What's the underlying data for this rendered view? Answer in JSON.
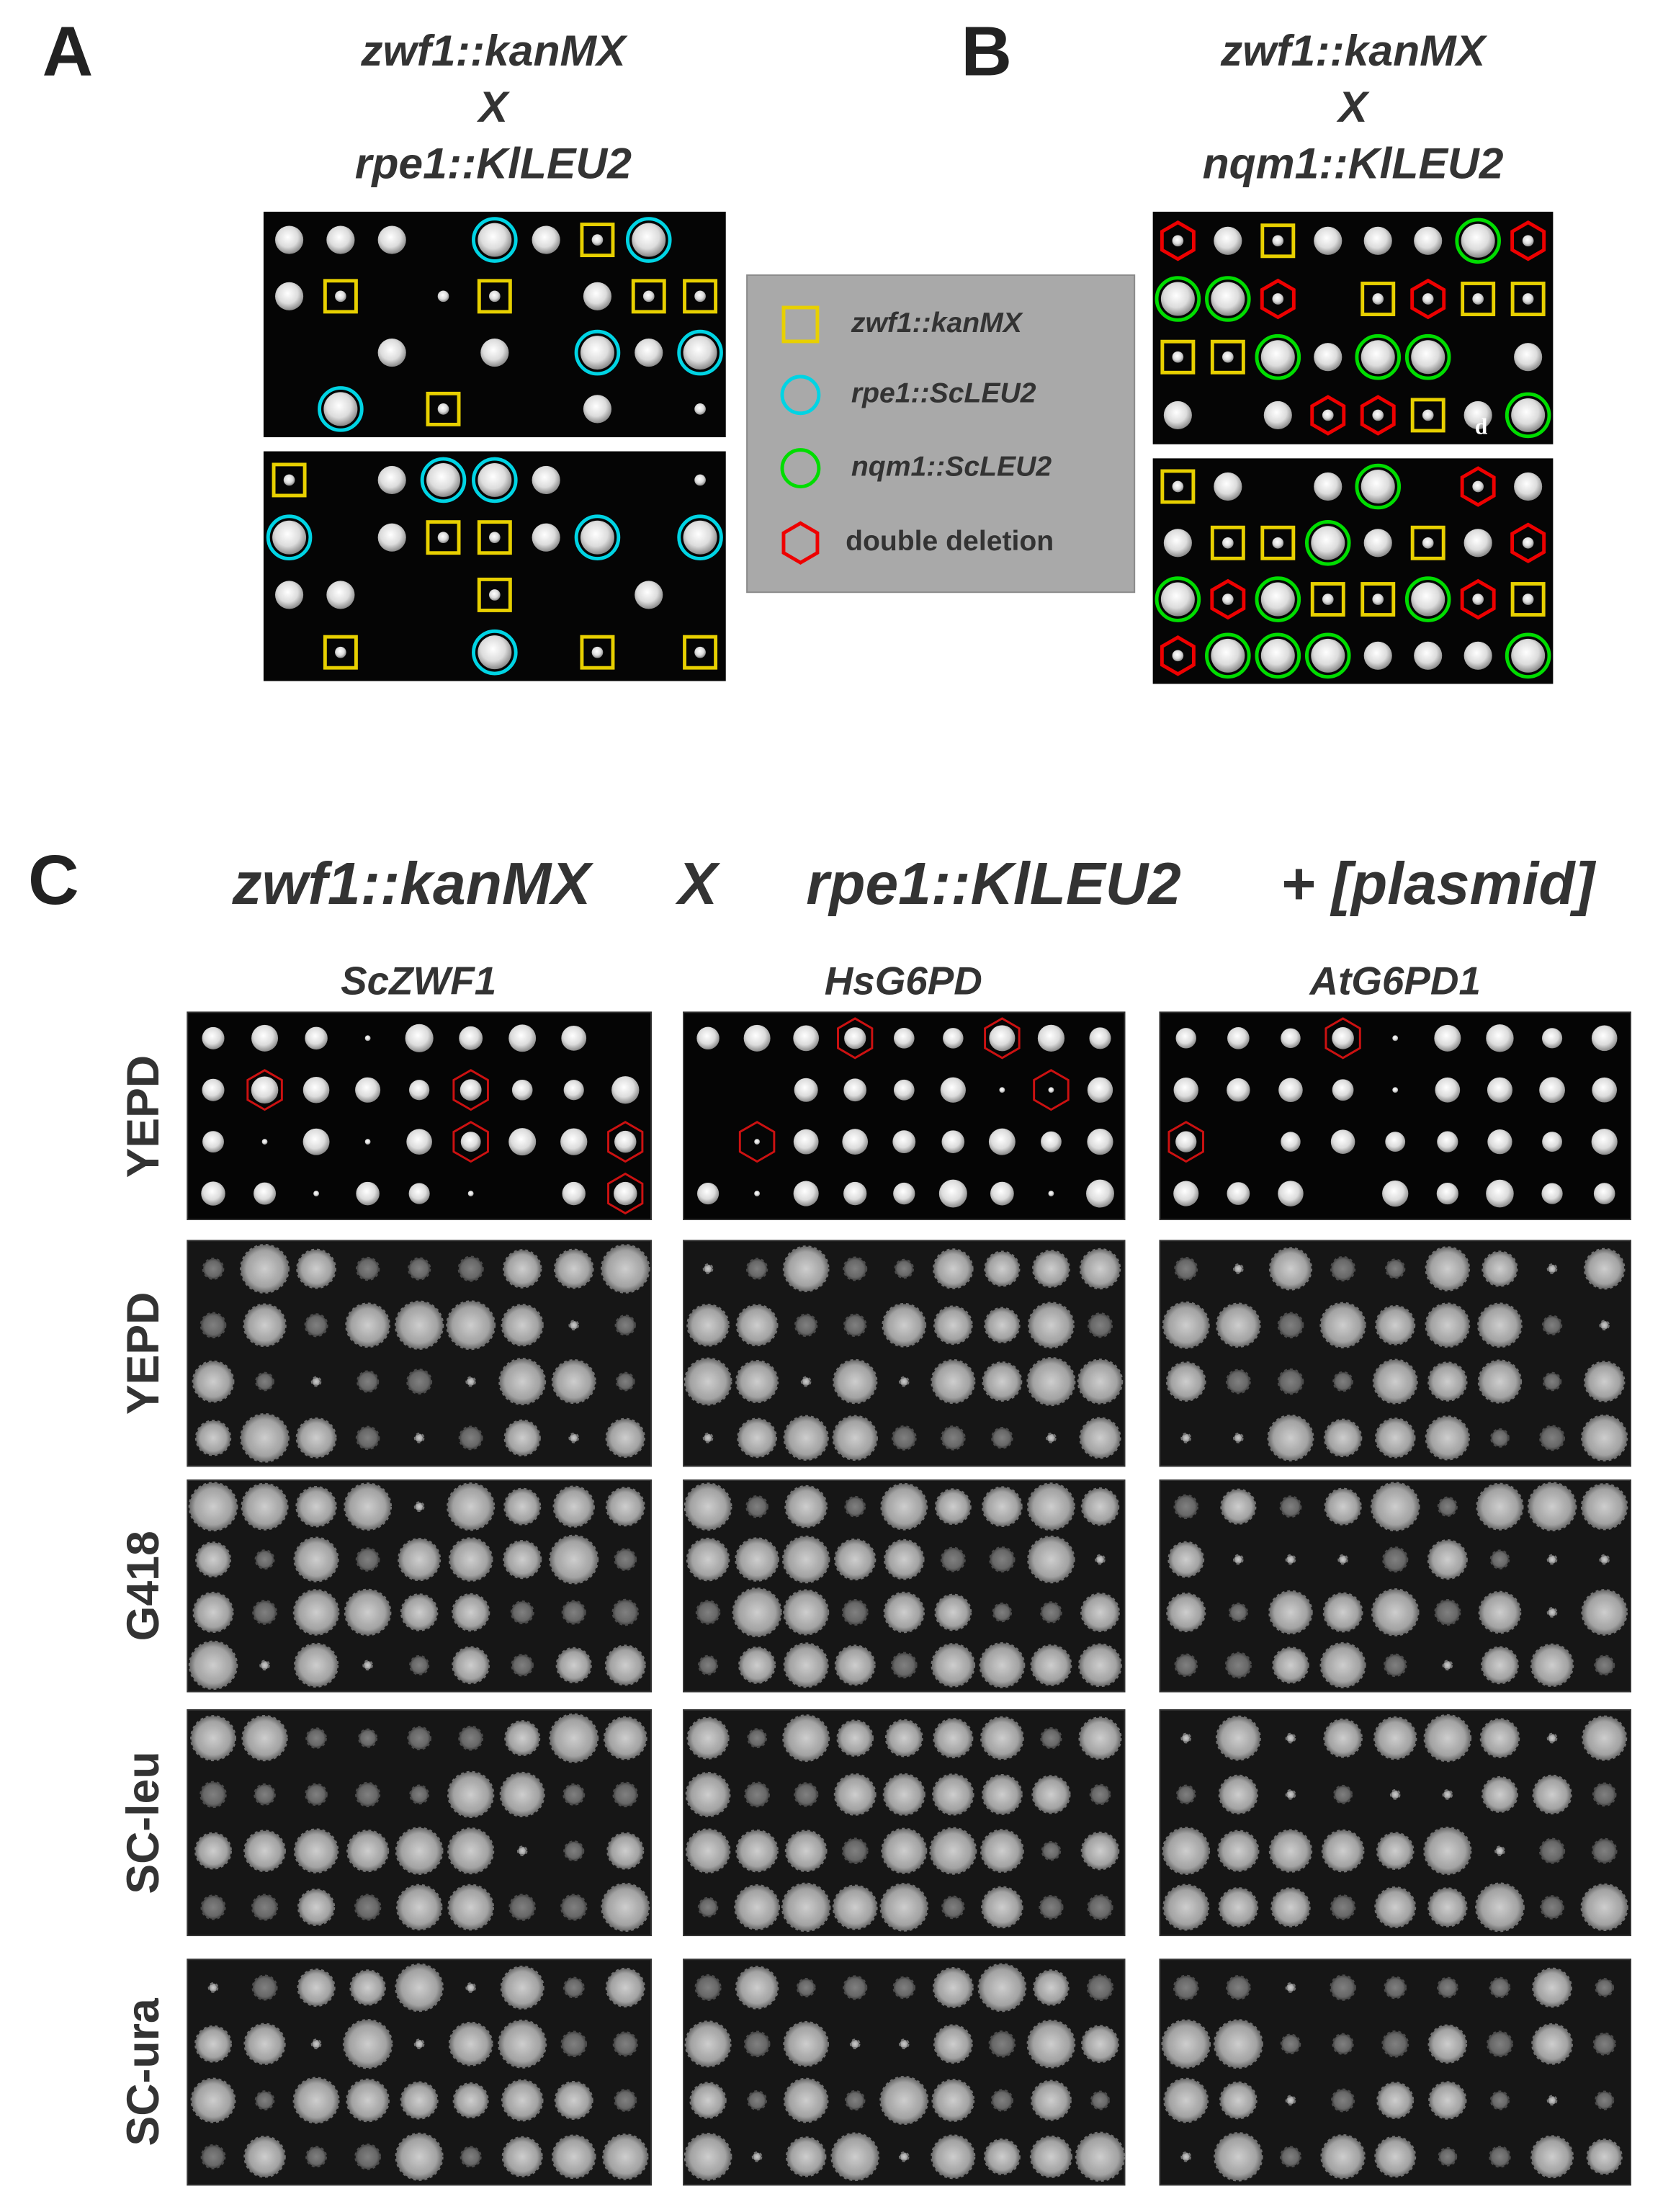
{
  "panel_a": {
    "label": "A",
    "title": [
      "zwf1::kanMX",
      "X",
      "rpe1::KlLEU2"
    ]
  },
  "panel_b": {
    "label": "B",
    "title": [
      "zwf1::kanMX",
      "X",
      "nqm1::KlLEU2"
    ],
    "annotation": "d"
  },
  "legend": [
    "zwf1::kanMX",
    "rpe1::ScLEU2",
    "nqm1::ScLEU2",
    "double deletion"
  ],
  "panel_c": {
    "label": "C",
    "title": [
      "zwf1::kanMX",
      "X",
      "rpe1::KlLEU2",
      "+ [plasmid]"
    ],
    "columns": [
      "ScZWF1",
      "HsG6PD",
      "AtG6PD1"
    ],
    "rows": [
      "YEPD",
      "YEPD",
      "G418",
      "SC-leu",
      "SC-ura"
    ]
  }
}
